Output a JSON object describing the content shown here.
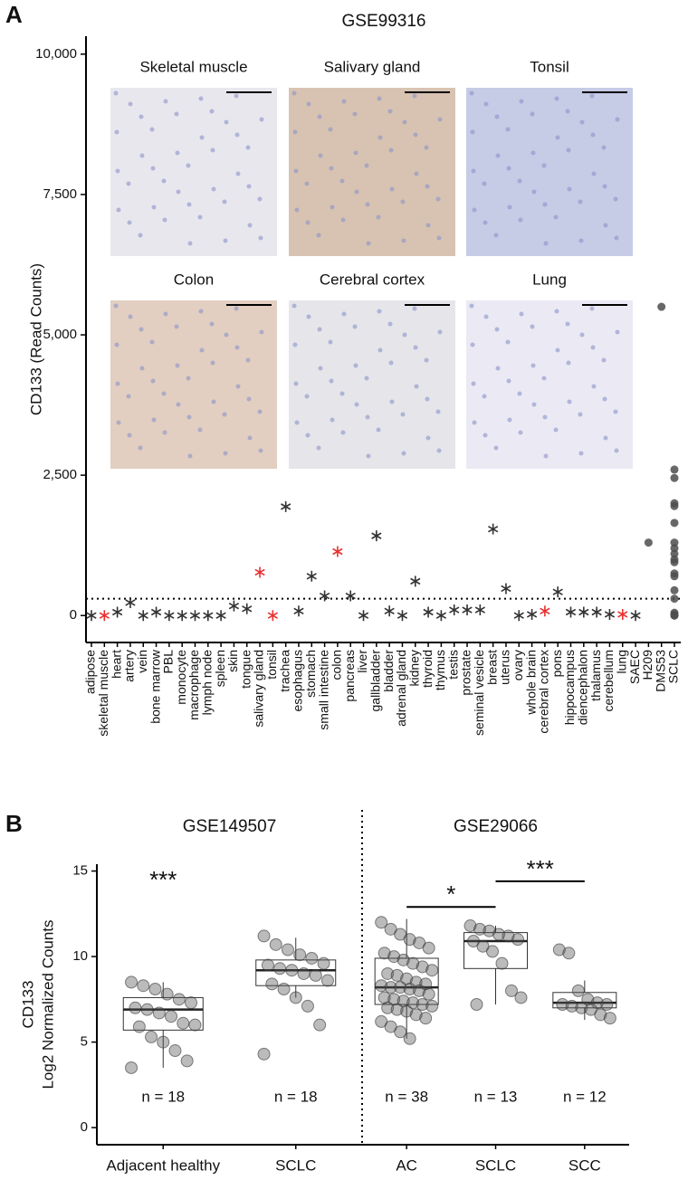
{
  "chart_data": [
    {
      "type": "scatter",
      "panel_label": "A",
      "title": "GSE99316",
      "y_label": "CD133 (Read Counts)",
      "categories": [
        "adipose",
        "skeletal muscle",
        "heart",
        "artery",
        "vein",
        "bone marrow",
        "PBL",
        "monocyte",
        "macrophage",
        "lymph node",
        "spleen",
        "skin",
        "tongue",
        "salivary gland",
        "tonsil",
        "trachea",
        "esophagus",
        "stomach",
        "small intestine",
        "colon",
        "pancreas",
        "liver",
        "gallbladder",
        "bladder",
        "adrenal gland",
        "kidney",
        "thyroid",
        "thymus",
        "testis",
        "prostate",
        "seminal vesicle",
        "breast",
        "uterus",
        "ovary",
        "whole brain",
        "cerebral cortex",
        "pons",
        "hippocampus",
        "diencephalon",
        "thalamus",
        "cerebellum",
        "lung",
        "SAEC",
        "H209",
        "DMS53",
        "SCLC"
      ],
      "series": [
        {
          "marker": "asterisk",
          "color": "#333333",
          "x": [
            "adipose",
            "heart",
            "artery",
            "vein",
            "bone marrow",
            "PBL",
            "monocyte",
            "macrophage",
            "lymph node",
            "spleen",
            "skin",
            "tongue",
            "trachea",
            "esophagus",
            "stomach",
            "small intestine",
            "pancreas",
            "liver",
            "gallbladder",
            "bladder",
            "adrenal gland",
            "kidney",
            "thyroid",
            "thymus",
            "testis",
            "prostate",
            "seminal vesicle",
            "breast",
            "uterus",
            "ovary",
            "whole brain",
            "pons",
            "hippocampus",
            "diencephalon",
            "thalamus",
            "cerebellum",
            "SAEC"
          ],
          "values": [
            0,
            60,
            230,
            0,
            60,
            0,
            0,
            0,
            0,
            0,
            170,
            120,
            1940,
            80,
            700,
            350,
            350,
            0,
            1420,
            80,
            0,
            610,
            60,
            0,
            100,
            100,
            100,
            1540,
            480,
            0,
            20,
            420,
            60,
            60,
            60,
            20,
            0
          ]
        },
        {
          "marker": "asterisk",
          "color": "#e8312f",
          "x": [
            "skeletal muscle",
            "salivary gland",
            "tonsil",
            "colon",
            "cerebral cortex",
            "lung"
          ],
          "values": [
            0,
            770,
            0,
            1140,
            80,
            20
          ]
        },
        {
          "marker": "dot",
          "color": "#4d4d4d",
          "x": [
            "H209",
            "DMS53",
            "SCLC",
            "SCLC",
            "SCLC",
            "SCLC",
            "SCLC",
            "SCLC",
            "SCLC",
            "SCLC",
            "SCLC",
            "SCLC",
            "SCLC",
            "SCLC",
            "SCLC",
            "SCLC",
            "SCLC",
            "SCLC",
            "SCLC",
            "SCLC"
          ],
          "values": [
            1300,
            5500,
            2600,
            2450,
            2000,
            1950,
            1650,
            1300,
            1200,
            1100,
            1000,
            950,
            750,
            700,
            450,
            300,
            50,
            20,
            0,
            0
          ]
        }
      ],
      "threshold": 300,
      "ylim": [
        -480,
        10320
      ],
      "yticks": [
        0,
        {
          "value": 2500,
          "label": "2,500"
        },
        {
          "value": 5000,
          "label": "5,000"
        },
        {
          "value": 7500,
          "label": "7,500"
        },
        {
          "value": 10000,
          "label": "10,000"
        }
      ],
      "images": [
        {
          "label": "Skeletal muscle",
          "color": "#e9e7ee"
        },
        {
          "label": "Salivary gland",
          "color": "#d8c3b2"
        },
        {
          "label": "Tonsil",
          "color": "#c6cbe6"
        },
        {
          "label": "Colon",
          "color": "#e2cfc1"
        },
        {
          "label": "Cerebral cortex",
          "color": "#e5e5ea"
        },
        {
          "label": "Lung",
          "color": "#ebe9f3"
        }
      ]
    },
    {
      "type": "box",
      "panel_label": "B",
      "y_label": [
        "CD133",
        "Log2 Normalized Counts"
      ],
      "ylim": [
        -1,
        15.4
      ],
      "yticks": [
        0,
        5,
        10,
        15
      ],
      "groups": [
        {
          "title": "GSE149507",
          "categories": [
            "Adjacent healthy",
            "SCLC"
          ],
          "boxes": [
            {
              "stats": {
                "min": 3.5,
                "q1": 5.7,
                "median": 6.9,
                "q3": 7.6,
                "max": 8.5
              },
              "n_label": "n = 18",
              "points": [
                8.5,
                8.3,
                8.1,
                7.8,
                7.5,
                7.3,
                7.0,
                6.9,
                6.7,
                6.5,
                6.1,
                6.0,
                5.9,
                5.3,
                5.0,
                4.5,
                3.9,
                3.5
              ]
            },
            {
              "stats": {
                "min": 7.6,
                "q1": 8.3,
                "median": 9.2,
                "q3": 9.8,
                "max": 11.1
              },
              "n_label": "n = 18",
              "points": [
                11.2,
                10.7,
                10.4,
                10.1,
                9.9,
                9.6,
                9.5,
                9.3,
                9.2,
                9.0,
                8.9,
                8.6,
                8.4,
                8.1,
                7.6,
                7.1,
                6.0,
                4.3
              ]
            }
          ],
          "significance": [
            {
              "label": "***",
              "between": [
                "Adjacent healthy"
              ],
              "y": 14.4
            }
          ]
        },
        {
          "title": "GSE29066",
          "categories": [
            "AC",
            "SCLC",
            "SCC"
          ],
          "boxes": [
            {
              "stats": {
                "min": 5.2,
                "q1": 7.2,
                "median": 8.2,
                "q3": 9.9,
                "max": 12.2
              },
              "n_label": "n = 38",
              "points": [
                12.0,
                11.6,
                11.3,
                11.0,
                10.8,
                10.5,
                10.2,
                10.0,
                9.8,
                9.6,
                9.4,
                9.2,
                9.0,
                8.9,
                8.7,
                8.5,
                8.4,
                8.3,
                8.2,
                8.2,
                8.1,
                8.0,
                7.8,
                7.6,
                7.5,
                7.4,
                7.3,
                7.2,
                7.1,
                7.0,
                6.9,
                6.8,
                6.6,
                6.4,
                6.2,
                5.9,
                5.6,
                5.2
              ]
            },
            {
              "stats": {
                "min": 7.2,
                "q1": 9.3,
                "median": 10.9,
                "q3": 11.4,
                "max": 11.8
              },
              "n_label": "n = 13",
              "points": [
                11.8,
                11.6,
                11.5,
                11.3,
                11.2,
                11.0,
                10.9,
                10.6,
                10.3,
                9.6,
                8.0,
                7.6,
                7.2
              ]
            },
            {
              "stats": {
                "min": 6.3,
                "q1": 7.0,
                "median": 7.3,
                "q3": 7.9,
                "max": 8.6
              },
              "n_label": "n = 12",
              "points": [
                10.4,
                10.2,
                8.0,
                7.5,
                7.3,
                7.2,
                7.2,
                7.1,
                7.0,
                6.9,
                6.6,
                6.4
              ]
            }
          ],
          "significance": [
            {
              "label": "*",
              "between": [
                "AC",
                "SCLC"
              ],
              "y": 12.9
            },
            {
              "label": "***",
              "between": [
                "SCLC",
                "SCC"
              ],
              "y": 14.4
            }
          ]
        }
      ]
    }
  ]
}
